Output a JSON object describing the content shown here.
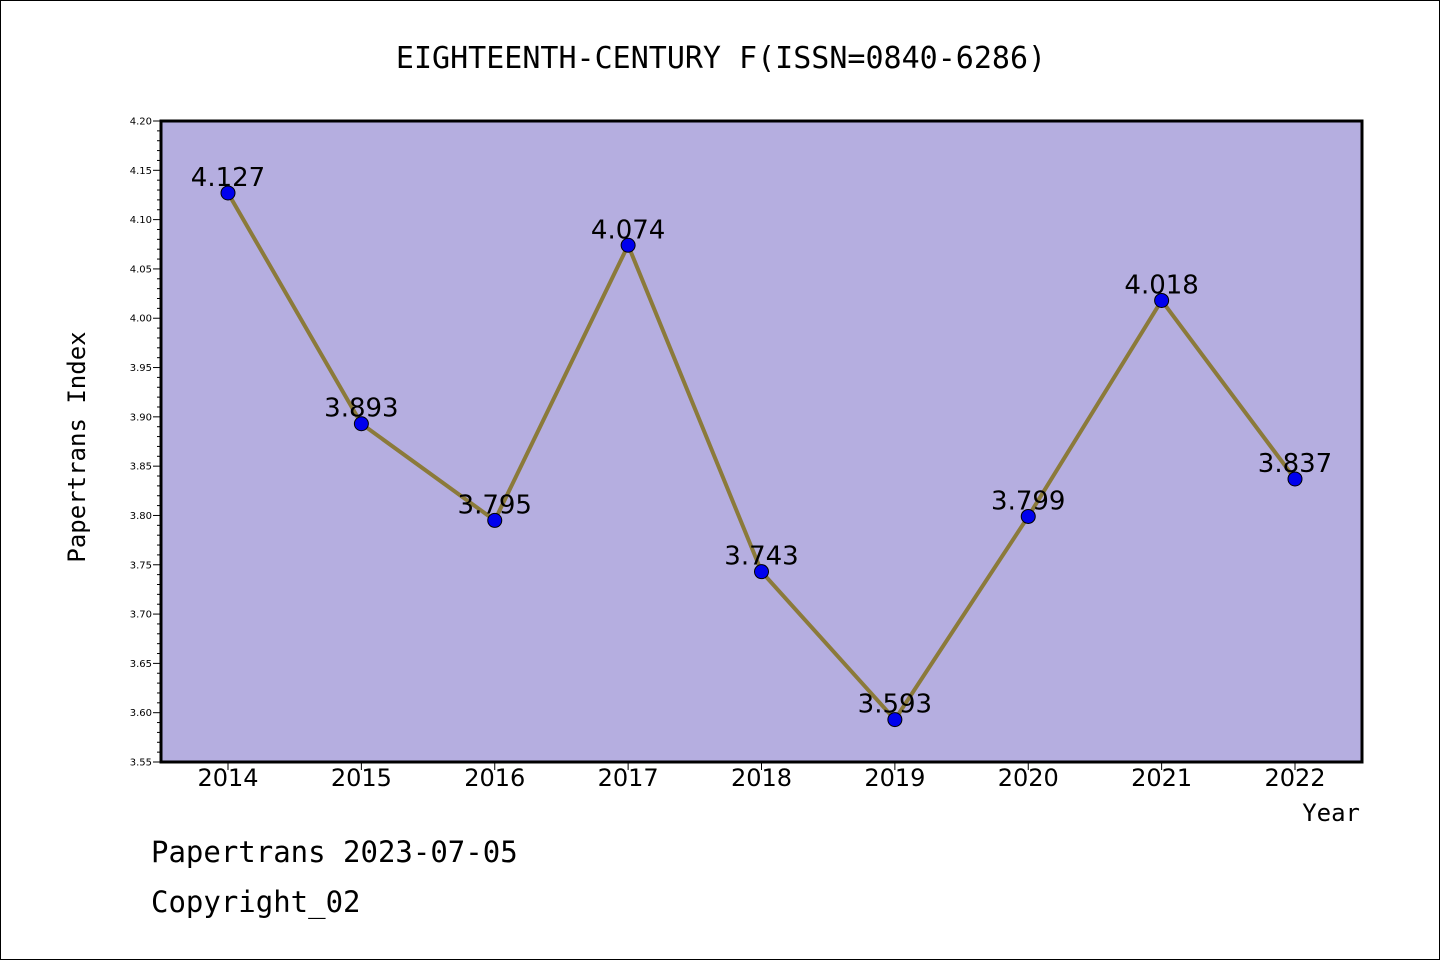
{
  "chart_data": {
    "type": "line",
    "title": "EIGHTEENTH-CENTURY F(ISSN=0840-6286)",
    "xlabel": "Year",
    "ylabel": "Papertrans Index",
    "categories": [
      "2014",
      "2015",
      "2016",
      "2017",
      "2018",
      "2019",
      "2020",
      "2021",
      "2022"
    ],
    "series": [
      {
        "values": [
          4.127,
          3.893,
          3.795,
          4.074,
          3.743,
          3.593,
          3.799,
          4.018,
          3.837
        ],
        "labels": [
          "4.127",
          "3.893",
          "3.795",
          "4.074",
          "3.743",
          "3.593",
          "3.799",
          "4.018",
          "3.837"
        ]
      }
    ],
    "ylim": [
      3.55,
      4.2
    ],
    "yticks": [
      "3.55",
      "3.60",
      "3.65",
      "3.70",
      "3.75",
      "3.80",
      "3.85",
      "3.90",
      "3.95",
      "4.00",
      "4.05",
      "4.10",
      "4.15",
      "4.20"
    ],
    "grid": false,
    "colors": {
      "plot_background": "#b5aee0",
      "line": "#8b7a3a",
      "marker": "#0000ee"
    }
  },
  "footer": {
    "line1": "Papertrans 2023-07-05",
    "line2": "Copyright_02"
  }
}
